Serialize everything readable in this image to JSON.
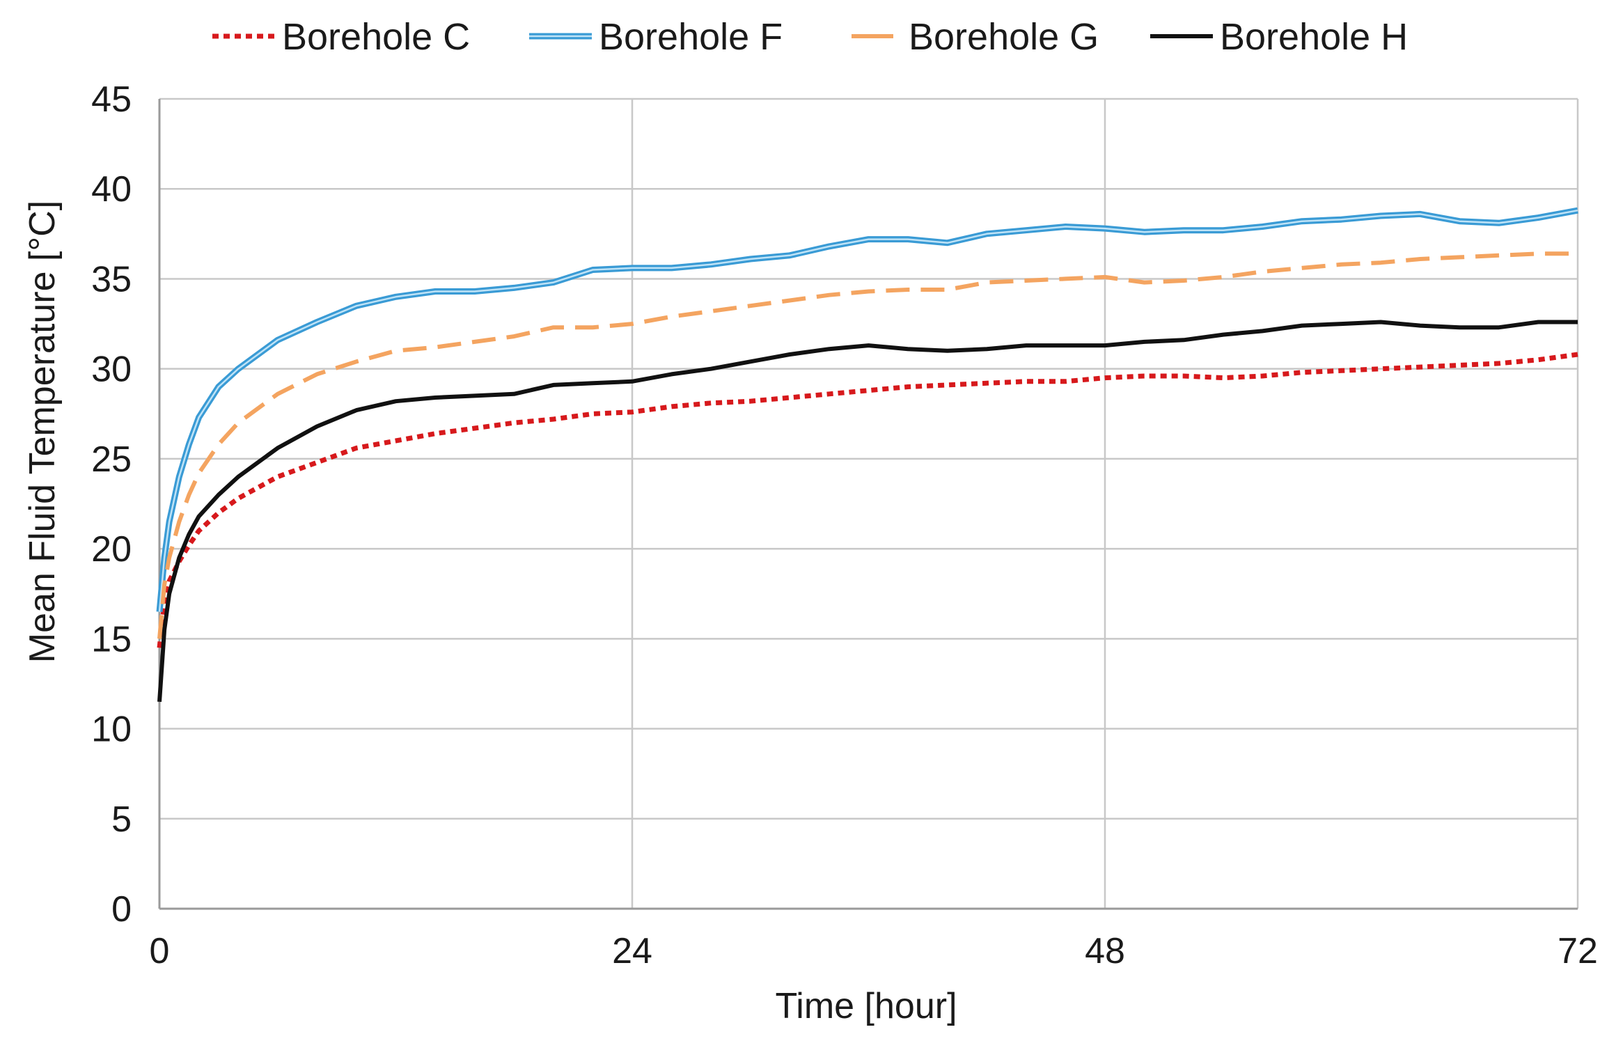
{
  "chart_data": {
    "type": "line",
    "title": "",
    "xlabel": "Time [hour]",
    "ylabel": "Mean Fluid Temperature [°C]",
    "xlim": [
      0,
      72
    ],
    "ylim": [
      0,
      45
    ],
    "xticks": [
      0,
      24,
      48,
      72
    ],
    "yticks": [
      0,
      5,
      10,
      15,
      20,
      25,
      30,
      35,
      40,
      45
    ],
    "grid": true,
    "legend_position": "top",
    "series": [
      {
        "name": "Borehole C",
        "color": "#d7191c",
        "style": "dashed",
        "x": [
          0,
          0.25,
          0.5,
          1,
          1.5,
          2,
          3,
          4,
          6,
          8,
          10,
          12,
          14,
          16,
          18,
          20,
          22,
          24,
          26,
          28,
          30,
          32,
          34,
          36,
          38,
          40,
          42,
          44,
          46,
          48,
          50,
          52,
          54,
          56,
          58,
          60,
          62,
          64,
          66,
          68,
          70,
          72
        ],
        "y": [
          14.5,
          17.0,
          18.2,
          19.3,
          20.2,
          21.0,
          22.0,
          22.8,
          24.0,
          24.8,
          25.6,
          26.0,
          26.4,
          26.7,
          27.0,
          27.2,
          27.5,
          27.6,
          27.9,
          28.1,
          28.2,
          28.4,
          28.6,
          28.8,
          29.0,
          29.1,
          29.2,
          29.3,
          29.3,
          29.5,
          29.6,
          29.6,
          29.5,
          29.6,
          29.8,
          29.9,
          30.0,
          30.1,
          30.2,
          30.3,
          30.5,
          30.8
        ]
      },
      {
        "name": "Borehole F",
        "color": "#3a9bd5",
        "style": "solid-double",
        "x": [
          0,
          0.25,
          0.5,
          1,
          1.5,
          2,
          3,
          4,
          6,
          8,
          10,
          12,
          14,
          16,
          18,
          20,
          22,
          24,
          26,
          28,
          30,
          32,
          34,
          36,
          38,
          40,
          42,
          44,
          46,
          48,
          50,
          52,
          54,
          56,
          58,
          60,
          62,
          64,
          66,
          68,
          70,
          72
        ],
        "y": [
          16.5,
          19.5,
          21.5,
          24.0,
          25.8,
          27.3,
          29.0,
          30.0,
          31.6,
          32.6,
          33.5,
          34.0,
          34.3,
          34.3,
          34.5,
          34.8,
          35.5,
          35.6,
          35.6,
          35.8,
          36.1,
          36.3,
          36.8,
          37.2,
          37.2,
          37.0,
          37.5,
          37.7,
          37.9,
          37.8,
          37.6,
          37.7,
          37.7,
          37.9,
          38.2,
          38.3,
          38.5,
          38.6,
          38.2,
          38.1,
          38.4,
          38.8
        ]
      },
      {
        "name": "Borehole G",
        "color": "#f4a460",
        "style": "dashed",
        "x": [
          0,
          0.25,
          0.5,
          1,
          1.5,
          2,
          3,
          4,
          6,
          8,
          10,
          12,
          14,
          16,
          18,
          20,
          22,
          24,
          26,
          28,
          30,
          32,
          34,
          36,
          38,
          40,
          42,
          44,
          46,
          48,
          50,
          52,
          54,
          56,
          58,
          60,
          62,
          64,
          66,
          68,
          70,
          72
        ],
        "y": [
          15.0,
          18.0,
          19.5,
          21.5,
          23.0,
          24.2,
          25.8,
          27.0,
          28.6,
          29.7,
          30.4,
          31.0,
          31.2,
          31.5,
          31.8,
          32.3,
          32.3,
          32.5,
          32.9,
          33.2,
          33.5,
          33.8,
          34.1,
          34.3,
          34.4,
          34.4,
          34.8,
          34.9,
          35.0,
          35.1,
          34.8,
          34.9,
          35.1,
          35.4,
          35.6,
          35.8,
          35.9,
          36.1,
          36.2,
          36.3,
          36.4,
          36.4
        ]
      },
      {
        "name": "Borehole H",
        "color": "#111111",
        "style": "solid",
        "x": [
          0,
          0.25,
          0.5,
          1,
          1.5,
          2,
          3,
          4,
          6,
          8,
          10,
          12,
          14,
          16,
          18,
          20,
          22,
          24,
          26,
          28,
          30,
          32,
          34,
          36,
          38,
          40,
          42,
          44,
          46,
          48,
          50,
          52,
          54,
          56,
          58,
          60,
          62,
          64,
          66,
          68,
          70,
          72
        ],
        "y": [
          11.5,
          15.5,
          17.5,
          19.5,
          20.8,
          21.8,
          23.0,
          24.0,
          25.6,
          26.8,
          27.7,
          28.2,
          28.4,
          28.5,
          28.6,
          29.1,
          29.2,
          29.3,
          29.7,
          30.0,
          30.4,
          30.8,
          31.1,
          31.3,
          31.1,
          31.0,
          31.1,
          31.3,
          31.3,
          31.3,
          31.5,
          31.6,
          31.9,
          32.1,
          32.4,
          32.5,
          32.6,
          32.4,
          32.3,
          32.3,
          32.6,
          32.6
        ]
      }
    ]
  }
}
